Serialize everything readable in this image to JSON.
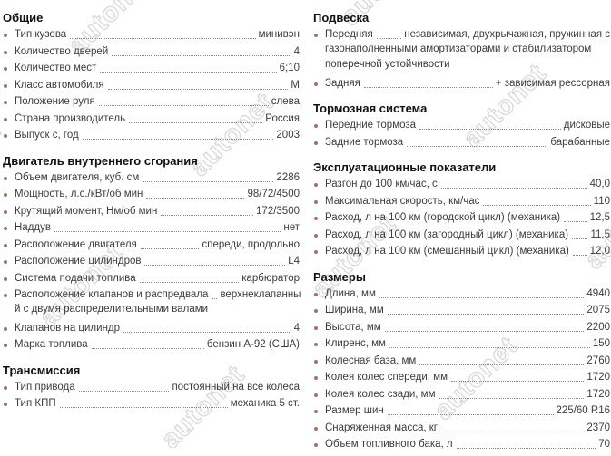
{
  "watermark": {
    "text": "autonet"
  },
  "colors": {
    "bullet": "#a76f66",
    "heading": "#111111",
    "text": "#3c3c3c",
    "leader": "#8a8a8a",
    "watermark_stroke": "#d6d6d6"
  },
  "columns": [
    {
      "sections": [
        {
          "title": "Общие",
          "rows": [
            {
              "label": "Тип кузова",
              "value": "минивэн"
            },
            {
              "label": "Количество дверей",
              "value": "4"
            },
            {
              "label": "Количество мест",
              "value": "6;10"
            },
            {
              "label": "Класс автомобиля",
              "value": "М"
            },
            {
              "label": "Положение руля",
              "value": "слева"
            },
            {
              "label": "Страна производитель",
              "value": "Россия"
            },
            {
              "label": "Выпуск с, год",
              "value": "2003"
            }
          ]
        },
        {
          "title": "Двигатель внутреннего сгорания",
          "rows": [
            {
              "label": "Объем двигателя, куб. см",
              "value": "2286"
            },
            {
              "label": "Мощность, л.с./кВт/об мин",
              "value": "98/72/4500"
            },
            {
              "label": "Крутящий момент, Нм/об мин",
              "value": "172/3500"
            },
            {
              "label": "Наддув",
              "value": "нет"
            },
            {
              "label": "Расположение двигателя",
              "value": "спереди, продольно"
            },
            {
              "label": "Расположение цилиндров",
              "value": "L4"
            },
            {
              "label": "Система подачи топлива",
              "value": "карбюратор"
            },
            {
              "label": "Расположение клапанов и распредвала",
              "value": "верхнеклапанны",
              "value_cont": "й с двумя распределительными валами"
            },
            {
              "label": "Клапанов на цилиндр",
              "value": "4"
            },
            {
              "label": "Марка топлива",
              "value": "бензин А-92 (США)"
            }
          ]
        },
        {
          "title": "Трансмиссия",
          "rows": [
            {
              "label": "Тип привода",
              "value": "постоянный на все колеса"
            },
            {
              "label": "Тип КПП",
              "value": "механика 5 ст."
            }
          ]
        }
      ]
    },
    {
      "sections": [
        {
          "title": "Подвеска",
          "rows": [
            {
              "label": "Передняя",
              "value": "независимая, двухрычажная, пружинная с",
              "value_cont": "газонаполненными амортизаторами и стабилизатором поперечной устойчивости"
            },
            {
              "label": "Задняя",
              "value": "+ зависимая рессорная"
            }
          ]
        },
        {
          "title": "Тормозная система",
          "rows": [
            {
              "label": "Передние тормоза",
              "value": "дисковые"
            },
            {
              "label": "Задние тормоза",
              "value": "барабанные"
            }
          ]
        },
        {
          "title": "Эксплуатационные показатели",
          "rows": [
            {
              "label": "Разгон до 100 км/час, с",
              "value": "40,0"
            },
            {
              "label": "Максимальная скорость, км/час",
              "value": "110"
            },
            {
              "label": "Расход, л на 100 км (городской цикл) (механика)",
              "value": "12,5"
            },
            {
              "label": "Расход, л на 100 км (загородный цикл) (механика)",
              "value": "11,5"
            },
            {
              "label": "Расход, л на 100 км (смешанный цикл) (механика)",
              "value": "12,0"
            }
          ]
        },
        {
          "title": "Размеры",
          "rows": [
            {
              "label": "Длина, мм",
              "value": "4940"
            },
            {
              "label": "Ширина, мм",
              "value": "2075"
            },
            {
              "label": "Высота, мм",
              "value": "2200"
            },
            {
              "label": "Клиренс, мм",
              "value": "150"
            },
            {
              "label": "Колесная база, мм",
              "value": "2760"
            },
            {
              "label": "Колея колес спереди, мм",
              "value": "1720"
            },
            {
              "label": "Колея колес сзади, мм",
              "value": "1720"
            },
            {
              "label": "Размер шин",
              "value": "225/60 R16"
            },
            {
              "label": "Снаряженная масса, кг",
              "value": "2370"
            },
            {
              "label": "Объем топливного бака, л",
              "value": "70"
            }
          ]
        }
      ]
    }
  ]
}
